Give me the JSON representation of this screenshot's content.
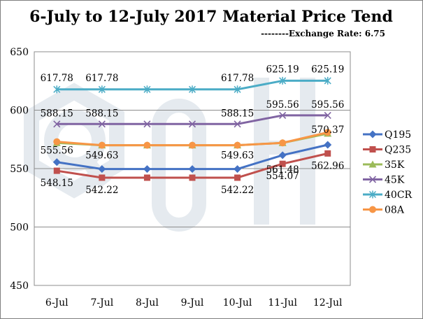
{
  "chart_data": {
    "type": "line",
    "title": "6-July  to 12-July 2017 Material Price Tend",
    "subtitle": "--------Exchange Rate: 6.75",
    "categories": [
      "6-Jul",
      "7-Jul",
      "8-Jul",
      "9-Jul",
      "10-Jul",
      "11-Jul",
      "12-Jul"
    ],
    "ylim": [
      450,
      650
    ],
    "yticks": [
      450,
      500,
      550,
      600,
      650
    ],
    "grid": true,
    "legend_position": "right",
    "series": [
      {
        "name": "Q195",
        "color": "#4472c4",
        "marker": "diamond",
        "values": [
          555.56,
          549.63,
          549.63,
          549.63,
          549.63,
          561.48,
          570.37
        ],
        "labels": [
          "555.56",
          "549.63",
          "",
          "",
          "549.63",
          "561.48",
          "570.37"
        ]
      },
      {
        "name": "Q235",
        "color": "#c0504d",
        "marker": "square",
        "values": [
          548.15,
          542.22,
          542.22,
          542.22,
          542.22,
          554.07,
          562.96
        ],
        "labels": [
          "548.15",
          "542.22",
          "",
          "",
          "542.22",
          "554.07",
          "562.96"
        ]
      },
      {
        "name": "35K",
        "color": "#9bbb59",
        "marker": "triangle",
        "values": [
          572,
          570,
          570,
          570,
          570,
          572,
          580
        ],
        "labels": []
      },
      {
        "name": "45K",
        "color": "#8064a2",
        "marker": "x",
        "values": [
          588.15,
          588.15,
          588.15,
          588.15,
          588.15,
          595.56,
          595.56
        ],
        "labels": [
          "588.15",
          "588.15",
          "",
          "",
          "588.15",
          "595.56",
          "595.56"
        ]
      },
      {
        "name": "40CR",
        "color": "#4bacc6",
        "marker": "star",
        "values": [
          617.78,
          617.78,
          617.78,
          617.78,
          617.78,
          625.19,
          625.19
        ],
        "labels": [
          "617.78",
          "617.78",
          "",
          "",
          "617.78",
          "625.19",
          "625.19"
        ]
      },
      {
        "name": "08A",
        "color": "#f79646",
        "marker": "circle",
        "values": [
          573,
          570,
          570,
          570,
          570,
          572,
          581
        ],
        "labels": []
      }
    ]
  }
}
